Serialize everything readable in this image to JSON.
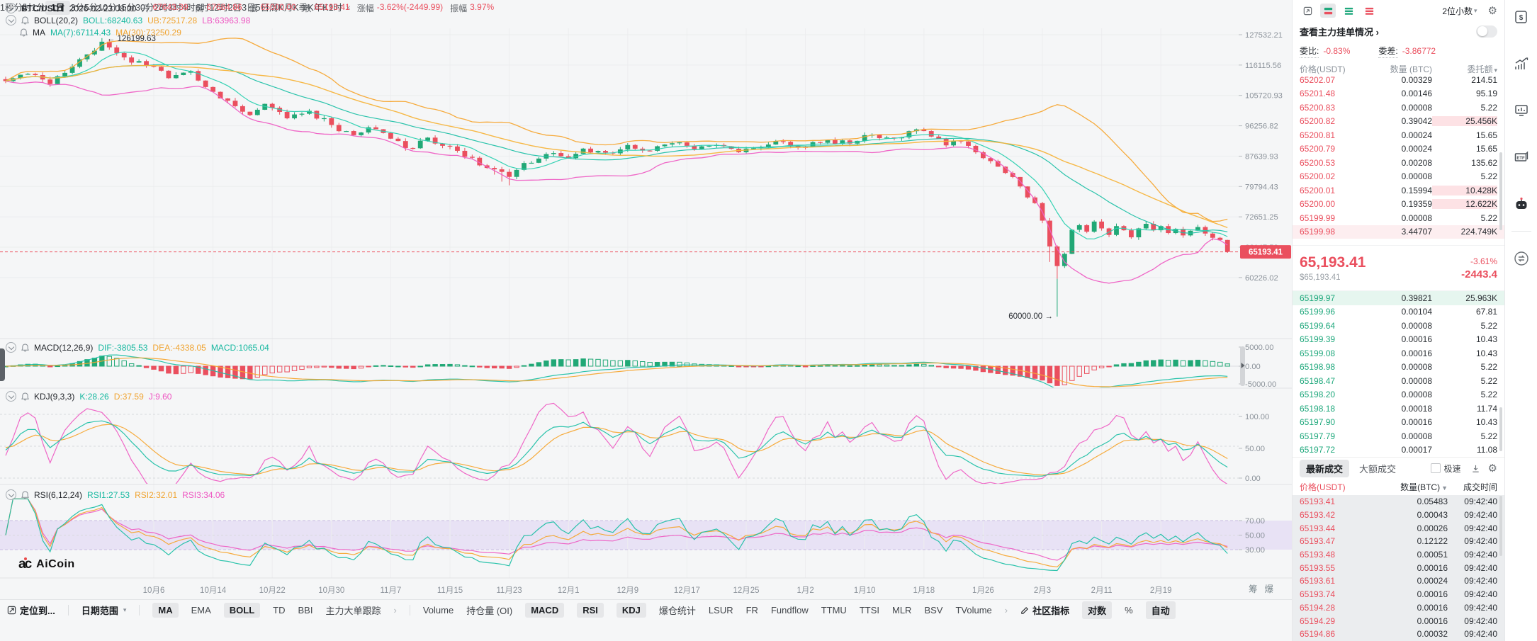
{
  "header": {
    "symbol": "BTC/USDT",
    "datetime": "2026-02-23 08:00",
    "fields": [
      {
        "label": "开",
        "value": "67643.39"
      },
      {
        "label": "高",
        "value": "67684.86"
      },
      {
        "label": "低",
        "value": "65000.00"
      },
      {
        "label": "收",
        "value": "65193.41"
      },
      {
        "label": "涨幅",
        "value": "-3.62%(-2449.99)"
      },
      {
        "label": "振幅",
        "value": "3.97%"
      }
    ]
  },
  "indicator_rows": {
    "boll": {
      "name": "BOLL(20,2)",
      "mid": "BOLL:68240.63",
      "ub": "UB:72517.28",
      "lb": "LB:63963.98"
    },
    "ma": {
      "name": "MA",
      "ma7": "MA(7):67114.43",
      "ma30": "MA(30):73250.29"
    },
    "macd": {
      "name": "MACD(12,26,9)",
      "dif": "DIF:-3805.53",
      "dea": "DEA:-4338.05",
      "macd": "MACD:1065.04"
    },
    "kdj": {
      "name": "KDJ(9,3,3)",
      "k": "K:28.26",
      "d": "D:37.59",
      "j": "J:9.60"
    },
    "rsi": {
      "name": "RSI(6,12,24)",
      "rsi1": "RSI1:27.53",
      "rsi2": "RSI2:32.01",
      "rsi3": "RSI3:34.06"
    }
  },
  "annotations": {
    "high": "← 126199.63",
    "low": "60000.00 →"
  },
  "axes": {
    "price": [
      "127532.21",
      "116115.56",
      "105720.93",
      "96256.82",
      "87639.93",
      "79794.43",
      "72651.25",
      "66147.52",
      "60226.02"
    ],
    "price_badge": "65193.41",
    "macd": [
      "5000.00",
      "0.00",
      "-5000.00"
    ],
    "kdj": [
      "100.00",
      "50.00",
      "0.00"
    ],
    "rsi": [
      "70.00",
      "50.00",
      "30.00"
    ],
    "dates": [
      "10月6",
      "10月14",
      "10月22",
      "10月30",
      "11月7",
      "11月15",
      "11月23",
      "12月1",
      "12月9",
      "12月17",
      "12月25",
      "1月2",
      "1月10",
      "1月18",
      "1月26",
      "2月3",
      "2月11",
      "2月19"
    ],
    "side_buttons": [
      "筹",
      "爆"
    ]
  },
  "chart_data": {
    "type": "candlestick",
    "scale": "log",
    "title": "BTC/USDT 1日",
    "visible_price_range": [
      60000,
      127532.21
    ],
    "period_high": 126199.63,
    "period_low": 60000.0,
    "last_candle": {
      "open": 67643.39,
      "high": 67684.86,
      "low": 65000.0,
      "close": 65193.41
    },
    "candle_count": 166,
    "first_date_index": 20,
    "date_step": 8,
    "close_anchors": [
      [
        0,
        110500
      ],
      [
        3,
        113000
      ],
      [
        6,
        109500
      ],
      [
        9,
        115500
      ],
      [
        11,
        120000
      ],
      [
        13,
        124800
      ],
      [
        15,
        120500
      ],
      [
        17,
        117000
      ],
      [
        20,
        115500
      ],
      [
        22,
        111500
      ],
      [
        25,
        114000
      ],
      [
        27,
        108500
      ],
      [
        30,
        104000
      ],
      [
        33,
        99500
      ],
      [
        35,
        103000
      ],
      [
        38,
        98500
      ],
      [
        41,
        100800
      ],
      [
        44,
        96500
      ],
      [
        47,
        93500
      ],
      [
        49,
        95800
      ],
      [
        52,
        92500
      ],
      [
        55,
        89800
      ],
      [
        57,
        92800
      ],
      [
        60,
        90300
      ],
      [
        63,
        87200
      ],
      [
        65,
        84500
      ],
      [
        68,
        82200
      ],
      [
        70,
        85800
      ],
      [
        73,
        88200
      ],
      [
        76,
        87100
      ],
      [
        78,
        89700
      ],
      [
        81,
        88600
      ],
      [
        84,
        90700
      ],
      [
        87,
        89100
      ],
      [
        90,
        91200
      ],
      [
        93,
        89600
      ],
      [
        96,
        90700
      ],
      [
        99,
        88700
      ],
      [
        102,
        90100
      ],
      [
        105,
        91600
      ],
      [
        108,
        90100
      ],
      [
        111,
        92100
      ],
      [
        114,
        91100
      ],
      [
        117,
        93600
      ],
      [
        120,
        92600
      ],
      [
        123,
        95200
      ],
      [
        125,
        93100
      ],
      [
        127,
        90600
      ],
      [
        129,
        91700
      ],
      [
        131,
        88700
      ],
      [
        133,
        86300
      ],
      [
        135,
        83200
      ],
      [
        137,
        79800
      ],
      [
        139,
        75800
      ],
      [
        140,
        71800
      ],
      [
        141,
        66300
      ],
      [
        142,
        62400
      ],
      [
        143,
        64800
      ],
      [
        144,
        69800
      ],
      [
        145,
        70800
      ],
      [
        146,
        69400
      ],
      [
        147,
        71600
      ],
      [
        148,
        70100
      ],
      [
        149,
        68700
      ],
      [
        150,
        70600
      ],
      [
        151,
        69700
      ],
      [
        152,
        68200
      ],
      [
        153,
        70100
      ],
      [
        154,
        71100
      ],
      [
        155,
        69700
      ],
      [
        156,
        70600
      ],
      [
        157,
        69100
      ],
      [
        158,
        70000
      ],
      [
        159,
        68600
      ],
      [
        160,
        69600
      ],
      [
        161,
        70400
      ],
      [
        162,
        69000
      ],
      [
        163,
        68100
      ],
      [
        164,
        67643.39
      ],
      [
        165,
        65193.41
      ]
    ],
    "overlays": {
      "ma7": 67114.43,
      "ma30": 73250.29,
      "boll_mid": 68240.63,
      "boll_ub": 72517.28,
      "boll_lb": 63963.98
    },
    "macd": {
      "dif": -3805.53,
      "dea": -4338.05,
      "macd": 1065.04,
      "range": [
        -5000,
        5000
      ]
    },
    "kdj": {
      "k": 28.26,
      "d": 37.59,
      "j": 9.6,
      "range": [
        0,
        100
      ]
    },
    "rsi": {
      "rsi1": 27.53,
      "rsi2": 32.01,
      "rsi3": 34.06,
      "band": [
        30,
        70
      ]
    }
  },
  "colors": {
    "up": "#21a876",
    "down": "#ea4f5e",
    "teal": "#1fc0a6",
    "orange": "#f5a733",
    "magenta": "#ee5fc4",
    "axis_text": "#8b929a",
    "grid": "#ebedee",
    "band": "rgba(168,126,238,0.16)",
    "badge": "#ea4f5e"
  },
  "toolbar": {
    "locate": "定位到...",
    "date_range": "日期范围",
    "indicators": [
      {
        "label": "MA",
        "sel": true
      },
      {
        "label": "EMA"
      },
      {
        "label": "BOLL",
        "sel": true
      },
      {
        "label": "TD"
      },
      {
        "label": "BBI"
      },
      {
        "label": "主力大单跟踪"
      },
      {
        "label": "›",
        "chev": true
      },
      {
        "sep": true
      },
      {
        "label": "Volume"
      },
      {
        "label": "持仓量 (OI)"
      },
      {
        "label": "MACD",
        "sel": true
      },
      {
        "label": "RSI",
        "sel": true
      },
      {
        "label": "KDJ",
        "sel": true
      },
      {
        "label": "爆仓统计"
      },
      {
        "label": "LSUR"
      },
      {
        "label": "FR"
      },
      {
        "label": "Fundflow"
      },
      {
        "label": "TTMU"
      },
      {
        "label": "TTSI"
      },
      {
        "label": "MLR"
      },
      {
        "label": "BSV"
      },
      {
        "label": "TVolume"
      },
      {
        "label": "›",
        "chev": true
      }
    ],
    "community": "社区指标",
    "log": "对数",
    "percent": "%",
    "auto": "自动",
    "timeframes": [
      {
        "label": "1秒"
      },
      {
        "label": "分时"
      },
      {
        "label": "1分"
      },
      {
        "label": "1日",
        "sel": true
      },
      {
        "label": "3分"
      },
      {
        "label": "5分"
      },
      {
        "label": "10分"
      },
      {
        "label": "15分"
      },
      {
        "label": "30分"
      },
      {
        "label": "2时"
      },
      {
        "label": "3时"
      },
      {
        "label": "4时"
      },
      {
        "label": "6时"
      },
      {
        "label": "12时"
      },
      {
        "label": "2日"
      },
      {
        "label": "3日"
      },
      {
        "label": "5日"
      },
      {
        "label": "周K"
      },
      {
        "label": "月K"
      },
      {
        "label": "季K"
      },
      {
        "label": "年K"
      },
      {
        "label": "1时",
        "closable": true
      }
    ]
  },
  "orderbook": {
    "decimals": "2位小数",
    "main_orders": "查看主力挂单情况 ›",
    "ratio_label": "委比:",
    "ratio_value": "-0.83%",
    "diff_label": "委差:",
    "diff_value": "-3.86772",
    "columns": [
      "价格(USDT)",
      "数量 (BTC)",
      "委托额"
    ],
    "asks": [
      [
        "65202.07",
        "0.00329",
        "214.51"
      ],
      [
        "65201.48",
        "0.00146",
        "95.19"
      ],
      [
        "65200.83",
        "0.00008",
        "5.22"
      ],
      [
        "65200.82",
        "0.39042",
        "25.456K"
      ],
      [
        "65200.81",
        "0.00024",
        "15.65"
      ],
      [
        "65200.79",
        "0.00024",
        "15.65"
      ],
      [
        "65200.53",
        "0.00208",
        "135.62"
      ],
      [
        "65200.02",
        "0.00008",
        "5.22"
      ],
      [
        "65200.01",
        "0.15994",
        "10.428K"
      ],
      [
        "65200.00",
        "0.19359",
        "12.622K"
      ],
      [
        "65199.99",
        "0.00008",
        "5.22"
      ],
      [
        "65199.98",
        "3.44707",
        "224.749K"
      ]
    ],
    "ask_hl_amt": [
      3,
      8,
      9
    ],
    "ask_hl_row": [
      11
    ],
    "last_price": "65,193.41",
    "last_price_usd": "$65,193.41",
    "change_pct": "-3.61%",
    "change_abs": "-2443.4",
    "bids": [
      [
        "65199.97",
        "0.39821",
        "25.963K"
      ],
      [
        "65199.96",
        "0.00104",
        "67.81"
      ],
      [
        "65199.64",
        "0.00008",
        "5.22"
      ],
      [
        "65199.39",
        "0.00016",
        "10.43"
      ],
      [
        "65199.08",
        "0.00016",
        "10.43"
      ],
      [
        "65198.98",
        "0.00008",
        "5.22"
      ],
      [
        "65198.47",
        "0.00008",
        "5.22"
      ],
      [
        "65198.20",
        "0.00008",
        "5.22"
      ],
      [
        "65198.18",
        "0.00018",
        "11.74"
      ],
      [
        "65197.90",
        "0.00016",
        "10.43"
      ],
      [
        "65197.79",
        "0.00008",
        "5.22"
      ],
      [
        "65197.72",
        "0.00017",
        "11.08"
      ]
    ],
    "bid_hl_row": [
      0
    ]
  },
  "trades": {
    "tabs": [
      "最新成交",
      "大额成交"
    ],
    "active_tab": 0,
    "fast_label": "极速",
    "columns": [
      "价格(USDT)",
      "数量(BTC)",
      "成交时间"
    ],
    "rows": [
      [
        "65193.41",
        "0.05483",
        "09:42:40"
      ],
      [
        "65193.42",
        "0.00043",
        "09:42:40"
      ],
      [
        "65193.44",
        "0.00026",
        "09:42:40"
      ],
      [
        "65193.47",
        "0.12122",
        "09:42:40"
      ],
      [
        "65193.48",
        "0.00051",
        "09:42:40"
      ],
      [
        "65193.55",
        "0.00016",
        "09:42:40"
      ],
      [
        "65193.61",
        "0.00024",
        "09:42:40"
      ],
      [
        "65193.74",
        "0.00016",
        "09:42:40"
      ],
      [
        "65194.28",
        "0.00016",
        "09:42:40"
      ],
      [
        "65194.29",
        "0.00016",
        "09:42:40"
      ],
      [
        "65194.86",
        "0.00032",
        "09:42:40"
      ]
    ]
  },
  "logo": {
    "text": "AiCoin"
  }
}
